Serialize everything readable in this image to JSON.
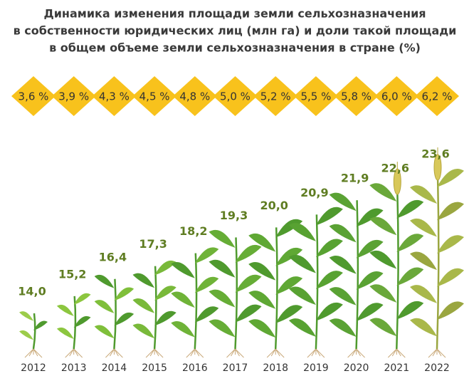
{
  "chart_data": {
    "type": "pictogram",
    "title": [
      "Динамика изменения площади земли сельхозназначения",
      "в собственности юридических лиц (млн га) и доли такой площади",
      "в общем объеме земли сельхозназначения в стране (%)"
    ],
    "categories": [
      "2012",
      "2013",
      "2014",
      "2015",
      "2016",
      "2017",
      "2018",
      "2019",
      "2020",
      "2021",
      "2022"
    ],
    "values": [
      14.0,
      15.2,
      16.4,
      17.3,
      18.2,
      19.3,
      20.0,
      20.9,
      21.9,
      22.6,
      23.6
    ],
    "value_labels": [
      "14,0",
      "15,2",
      "16,4",
      "17,3",
      "18,2",
      "19,3",
      "20,0",
      "20,9",
      "21,9",
      "22,6",
      "23,6"
    ],
    "color": "#5f7d22",
    "share": {
      "values": [
        3.6,
        3.9,
        4.3,
        4.5,
        4.8,
        5.0,
        5.2,
        5.5,
        5.8,
        6.0,
        6.2
      ],
      "value_labels": [
        "3,6 %",
        "3,9 %",
        "4,3 %",
        "4,5 %",
        "4,8 %",
        "5,0 %",
        "5,2 %",
        "5,5 %",
        "5,8 %",
        "6,0 %",
        "6,2 %"
      ],
      "color": "#f8c21c"
    }
  }
}
